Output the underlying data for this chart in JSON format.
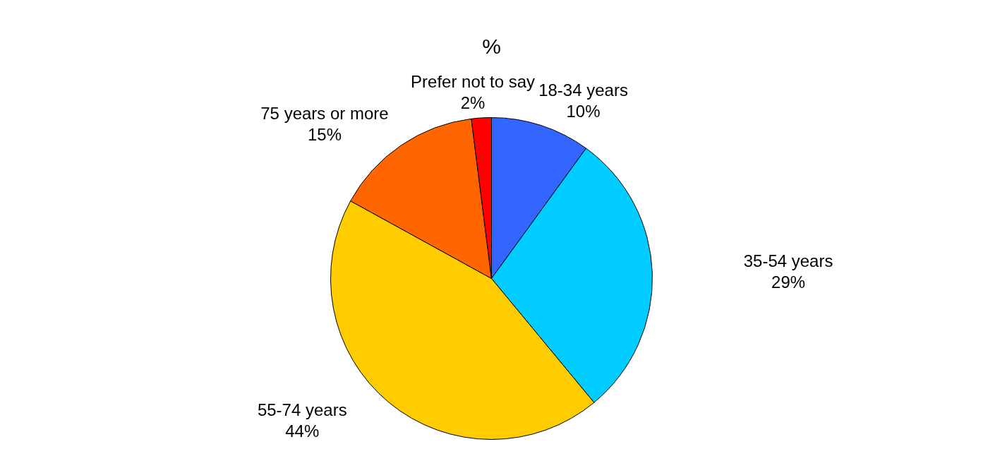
{
  "chart_data": {
    "type": "pie",
    "title": "%",
    "categories": [
      "18-34 years",
      "35-54 years",
      "55-74 years",
      "75 years or more",
      "Prefer not to say"
    ],
    "values": [
      10,
      29,
      44,
      15,
      2
    ],
    "value_labels": [
      "10%",
      "29%",
      "44%",
      "15%",
      "2%"
    ],
    "colors": [
      "#3366ff",
      "#00ccff",
      "#ffcc00",
      "#ff6600",
      "#ff0000"
    ],
    "legend": false
  }
}
